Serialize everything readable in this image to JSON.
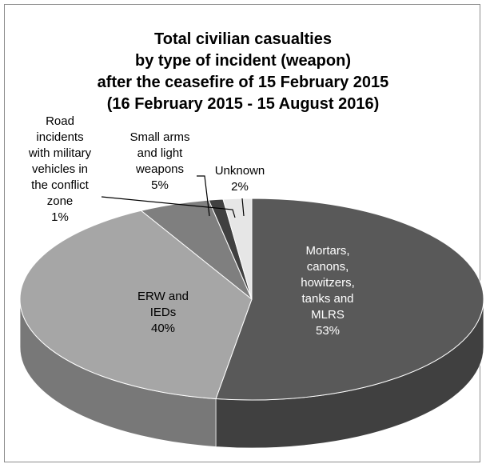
{
  "chart_data": {
    "type": "pie",
    "title_lines": [
      "Total civilian casualties",
      "by type of incident (weapon)",
      "after the ceasefire of 15 February 2015",
      "(16 February 2015 - 15 August 2016)"
    ],
    "slices": [
      {
        "name_lines": [
          "Mortars,",
          "canons,",
          "howitzers,",
          "tanks and",
          "MLRS"
        ],
        "pct": "53%",
        "value": 53,
        "color": "#595959"
      },
      {
        "name_lines": [
          "ERW and",
          "IEDs"
        ],
        "pct": "40%",
        "value": 40,
        "color": "#a6a6a6"
      },
      {
        "name_lines": [
          "Small arms",
          "and light",
          "weapons"
        ],
        "pct": "5%",
        "value": 5,
        "color": "#7f7f7f"
      },
      {
        "name_lines": [
          "Road",
          "incidents",
          "with military",
          "vehicles in",
          "the conflict",
          "zone"
        ],
        "pct": "1%",
        "value": 1,
        "color": "#404040"
      },
      {
        "name_lines": [
          "Unknown"
        ],
        "pct": "2%",
        "value": 2,
        "color": "#e6e6e6"
      }
    ],
    "style": "3d-pie"
  }
}
